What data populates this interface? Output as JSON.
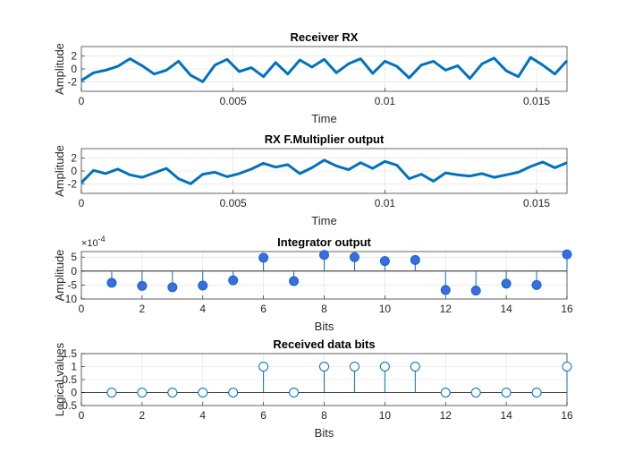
{
  "chart_data": [
    {
      "type": "line",
      "title": "Receiver RX",
      "xlabel": "Time",
      "ylabel": "Amplitude",
      "xlim": [
        0,
        0.016
      ],
      "ylim": [
        -3.5,
        3.5
      ],
      "xticks": [
        0,
        0.005,
        0.01,
        0.015
      ],
      "xtick_labels": [
        "0",
        "0.005",
        "0.01",
        "0.015"
      ],
      "yticks": [
        -2,
        0,
        2
      ],
      "ytick_labels": [
        "-2",
        "0",
        "2"
      ],
      "grid": true,
      "color": "#0072BD",
      "series": [
        {
          "x": [
            0,
            0.0004,
            0.0008,
            0.0012,
            0.0016,
            0.002,
            0.0024,
            0.0028,
            0.0032,
            0.0036,
            0.004,
            0.0044,
            0.0048,
            0.0052,
            0.0056,
            0.006,
            0.0064,
            0.0068,
            0.0072,
            0.0076,
            0.008,
            0.0084,
            0.0088,
            0.0092,
            0.0096,
            0.01,
            0.0104,
            0.0108,
            0.0112,
            0.0116,
            0.012,
            0.0124,
            0.0128,
            0.0132,
            0.0136,
            0.014,
            0.0144,
            0.0148,
            0.0152,
            0.0156,
            0.016
          ],
          "values": [
            -1.8,
            -0.6,
            -0.2,
            0.4,
            1.6,
            0.5,
            -0.8,
            -0.2,
            1.2,
            -1.0,
            -2.0,
            0.6,
            1.5,
            -0.4,
            0.2,
            -1.2,
            1.0,
            -0.8,
            1.4,
            0.3,
            1.5,
            -0.6,
            0.8,
            1.6,
            -0.7,
            1.2,
            0.4,
            -1.4,
            0.6,
            1.2,
            -0.2,
            0.5,
            -1.5,
            0.8,
            1.7,
            -0.3,
            -1.2,
            1.8,
            0.6,
            -0.8,
            1.3
          ]
        }
      ]
    },
    {
      "type": "line",
      "title": "RX F.Multiplier output",
      "xlabel": "Time",
      "ylabel": "Amplitude",
      "xlim": [
        0,
        0.016
      ],
      "ylim": [
        -3.5,
        3.5
      ],
      "xticks": [
        0,
        0.005,
        0.01,
        0.015
      ],
      "xtick_labels": [
        "0",
        "0.005",
        "0.01",
        "0.015"
      ],
      "yticks": [
        -2,
        0,
        2
      ],
      "ytick_labels": [
        "-2",
        "0",
        "2"
      ],
      "grid": true,
      "color": "#0072BD",
      "series": [
        {
          "x": [
            0,
            0.0004,
            0.0008,
            0.0012,
            0.0016,
            0.002,
            0.0024,
            0.0028,
            0.0032,
            0.0036,
            0.004,
            0.0044,
            0.0048,
            0.0052,
            0.0056,
            0.006,
            0.0064,
            0.0068,
            0.0072,
            0.0076,
            0.008,
            0.0084,
            0.0088,
            0.0092,
            0.0096,
            0.01,
            0.0104,
            0.0108,
            0.0112,
            0.0116,
            0.012,
            0.0124,
            0.0128,
            0.0132,
            0.0136,
            0.014,
            0.0144,
            0.0148,
            0.0152,
            0.0156,
            0.016
          ],
          "values": [
            -1.8,
            0.1,
            -0.4,
            0.3,
            -0.6,
            -1.0,
            -0.3,
            0.4,
            -1.2,
            -2.0,
            -0.5,
            -0.2,
            -0.9,
            -0.4,
            0.3,
            1.2,
            0.6,
            1.0,
            -0.4,
            0.5,
            1.7,
            0.8,
            0.2,
            1.3,
            0.4,
            1.5,
            0.9,
            -1.2,
            -0.5,
            -1.6,
            -0.3,
            -0.6,
            -0.8,
            -0.4,
            -1.0,
            -0.6,
            -0.2,
            0.7,
            1.4,
            0.5,
            1.3
          ]
        }
      ]
    },
    {
      "type": "scatter",
      "style": "stem-filled",
      "title": "Integrator output",
      "xlabel": "Bits",
      "ylabel": "Amplitude",
      "xlim": [
        0,
        16
      ],
      "ylim": [
        -10,
        7
      ],
      "y_exponent": "×10^-4",
      "xticks": [
        0,
        2,
        4,
        6,
        8,
        10,
        12,
        14,
        16
      ],
      "xtick_labels": [
        "0",
        "2",
        "4",
        "6",
        "8",
        "10",
        "12",
        "14",
        "16"
      ],
      "yticks": [
        -10,
        -5,
        0,
        5
      ],
      "ytick_labels": [
        "-10",
        "-5",
        "0",
        "5"
      ],
      "grid": true,
      "color": "#0072BD",
      "marker_fill": "#4169E1",
      "x": [
        1,
        2,
        3,
        4,
        5,
        6,
        7,
        8,
        9,
        10,
        11,
        12,
        13,
        14,
        15,
        16
      ],
      "values": [
        -4.2,
        -5.3,
        -5.8,
        -5.2,
        -3.3,
        4.8,
        -3.6,
        5.8,
        5.0,
        3.6,
        4.0,
        -6.8,
        -7.0,
        -4.5,
        -5.0,
        6.0
      ]
    },
    {
      "type": "scatter",
      "style": "stem-open",
      "title": "Received data bits",
      "xlabel": "Bits",
      "ylabel": "Logical values",
      "xlim": [
        0,
        16
      ],
      "ylim": [
        -0.5,
        1.5
      ],
      "xticks": [
        0,
        2,
        4,
        6,
        8,
        10,
        12,
        14,
        16
      ],
      "xtick_labels": [
        "0",
        "2",
        "4",
        "6",
        "8",
        "10",
        "12",
        "14",
        "16"
      ],
      "yticks": [
        -0.5,
        0,
        0.5,
        1,
        1.5
      ],
      "ytick_labels": [
        "-0.5",
        "0",
        "0.5",
        "1",
        "1.5"
      ],
      "grid": true,
      "color": "#0072BD",
      "x": [
        1,
        2,
        3,
        4,
        5,
        6,
        7,
        8,
        9,
        10,
        11,
        12,
        13,
        14,
        15,
        16
      ],
      "values": [
        0,
        0,
        0,
        0,
        0,
        1,
        0,
        1,
        1,
        1,
        1,
        0,
        0,
        0,
        0,
        1
      ]
    }
  ]
}
